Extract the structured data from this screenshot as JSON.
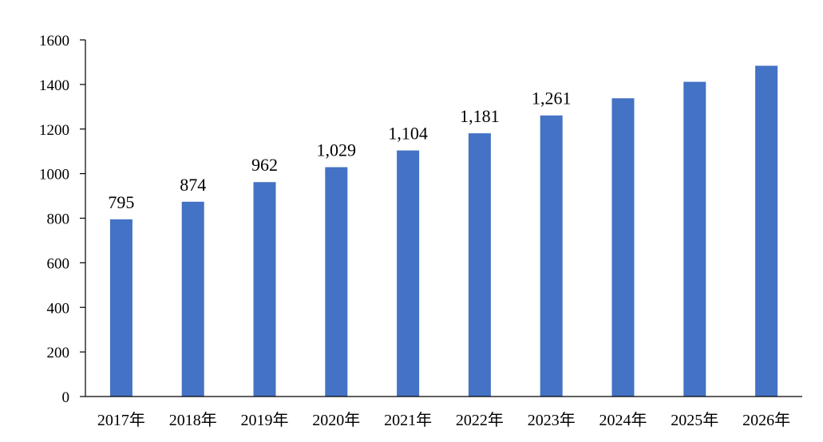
{
  "chart_data": {
    "type": "bar",
    "title": "",
    "xlabel": "",
    "ylabel": "",
    "categories": [
      "2017年",
      "2018年",
      "2019年",
      "2020年",
      "2021年",
      "2022年",
      "2023年",
      "2024年",
      "2025年",
      "2026年"
    ],
    "values": [
      795,
      874,
      962,
      1029,
      1104,
      1181,
      1261,
      1338,
      1412,
      1484
    ],
    "data_labels": [
      "795",
      "874",
      "962",
      "1,029",
      "1,104",
      "1,181",
      "1,261",
      "",
      "",
      ""
    ],
    "yticks": [
      "0",
      "200",
      "400",
      "600",
      "800",
      "1000",
      "1200",
      "1400",
      "1600"
    ],
    "ylim": [
      0,
      1600
    ],
    "grid": false,
    "legend": "none",
    "bar_color": "#4472C4"
  }
}
